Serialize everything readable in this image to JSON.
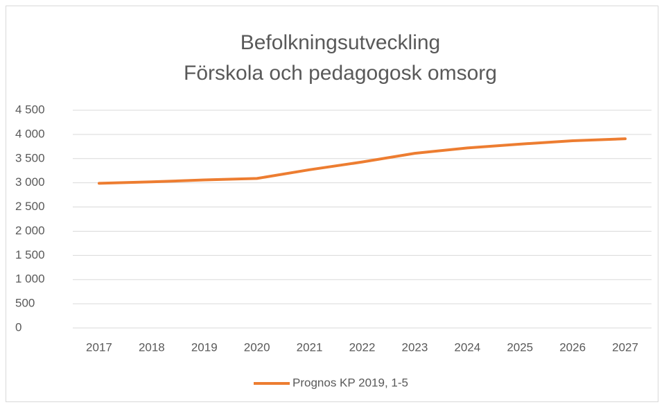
{
  "chart_data": {
    "type": "line",
    "title": "Befolkningsutveckling",
    "subtitle": "Förskola och pedagogosk omsorg",
    "categories": [
      "2017",
      "2018",
      "2019",
      "2020",
      "2021",
      "2022",
      "2023",
      "2024",
      "2025",
      "2026",
      "2027"
    ],
    "series": [
      {
        "name": "Prognos KP 2019, 1-5",
        "color": "#ed7d31",
        "values": [
          2990,
          3020,
          3060,
          3090,
          3270,
          3430,
          3610,
          3720,
          3800,
          3870,
          3910
        ]
      }
    ],
    "ylim": [
      0,
      4500
    ],
    "yticks": [
      0,
      500,
      {
        "value": 1000,
        "label": "1 000"
      },
      {
        "value": 1500,
        "label": "1 500"
      },
      {
        "value": 2000,
        "label": "2 000"
      },
      {
        "value": 2500,
        "label": "2 500"
      },
      {
        "value": 3000,
        "label": "3 000"
      },
      {
        "value": 3500,
        "label": "3 500"
      },
      {
        "value": 4000,
        "label": "4 000"
      },
      {
        "value": 4500,
        "label": "4 500"
      }
    ],
    "grid": true,
    "legend": "bottom"
  }
}
